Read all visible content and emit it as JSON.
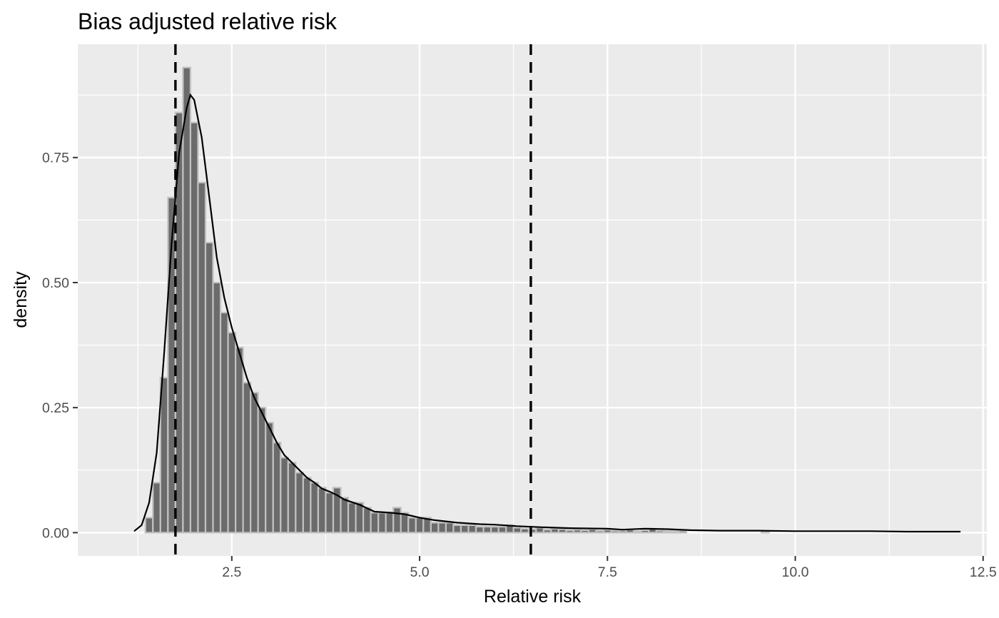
{
  "chart_data": {
    "type": "histogram",
    "title": "Bias adjusted relative risk",
    "xlabel": "Relative risk",
    "ylabel": "density",
    "xlim": [
      0.45,
      12.55
    ],
    "ylim": [
      -0.0465,
      0.9765
    ],
    "x_ticks": [
      2.5,
      5.0,
      7.5,
      10.0,
      12.5
    ],
    "x_tick_labels": [
      "2.5",
      "5.0",
      "7.5",
      "10.0",
      "12.5"
    ],
    "y_ticks": [
      0.0,
      0.25,
      0.5,
      0.75
    ],
    "y_tick_labels": [
      "0.00",
      "0.25",
      "0.50",
      "0.75"
    ],
    "grid": true,
    "background": "#ebebeb",
    "bar_fill": "#6b6b6b",
    "bar_edge": "#c2c2c2",
    "bin_width": 0.1,
    "bins": [
      {
        "x": 1.4,
        "y": 0.03
      },
      {
        "x": 1.5,
        "y": 0.1
      },
      {
        "x": 1.6,
        "y": 0.31
      },
      {
        "x": 1.7,
        "y": 0.67
      },
      {
        "x": 1.8,
        "y": 0.84
      },
      {
        "x": 1.9,
        "y": 0.93
      },
      {
        "x": 2.0,
        "y": 0.82
      },
      {
        "x": 2.1,
        "y": 0.7
      },
      {
        "x": 2.2,
        "y": 0.58
      },
      {
        "x": 2.3,
        "y": 0.5
      },
      {
        "x": 2.4,
        "y": 0.44
      },
      {
        "x": 2.5,
        "y": 0.4
      },
      {
        "x": 2.6,
        "y": 0.37
      },
      {
        "x": 2.7,
        "y": 0.3
      },
      {
        "x": 2.8,
        "y": 0.28
      },
      {
        "x": 2.9,
        "y": 0.25
      },
      {
        "x": 3.0,
        "y": 0.22
      },
      {
        "x": 3.1,
        "y": 0.18
      },
      {
        "x": 3.2,
        "y": 0.15
      },
      {
        "x": 3.3,
        "y": 0.14
      },
      {
        "x": 3.4,
        "y": 0.12
      },
      {
        "x": 3.5,
        "y": 0.11
      },
      {
        "x": 3.6,
        "y": 0.1
      },
      {
        "x": 3.7,
        "y": 0.09
      },
      {
        "x": 3.8,
        "y": 0.08
      },
      {
        "x": 3.9,
        "y": 0.09
      },
      {
        "x": 4.0,
        "y": 0.07
      },
      {
        "x": 4.1,
        "y": 0.06
      },
      {
        "x": 4.2,
        "y": 0.06
      },
      {
        "x": 4.3,
        "y": 0.05
      },
      {
        "x": 4.4,
        "y": 0.04
      },
      {
        "x": 4.5,
        "y": 0.04
      },
      {
        "x": 4.6,
        "y": 0.04
      },
      {
        "x": 4.7,
        "y": 0.05
      },
      {
        "x": 4.8,
        "y": 0.04
      },
      {
        "x": 4.9,
        "y": 0.03
      },
      {
        "x": 5.0,
        "y": 0.03
      },
      {
        "x": 5.1,
        "y": 0.03
      },
      {
        "x": 5.2,
        "y": 0.02
      },
      {
        "x": 5.3,
        "y": 0.02
      },
      {
        "x": 5.4,
        "y": 0.02
      },
      {
        "x": 5.5,
        "y": 0.015
      },
      {
        "x": 5.6,
        "y": 0.015
      },
      {
        "x": 5.7,
        "y": 0.015
      },
      {
        "x": 5.8,
        "y": 0.012
      },
      {
        "x": 5.9,
        "y": 0.012
      },
      {
        "x": 6.0,
        "y": 0.012
      },
      {
        "x": 6.1,
        "y": 0.012
      },
      {
        "x": 6.2,
        "y": 0.015
      },
      {
        "x": 6.3,
        "y": 0.01
      },
      {
        "x": 6.4,
        "y": 0.008
      },
      {
        "x": 6.5,
        "y": 0.007
      },
      {
        "x": 6.6,
        "y": 0.01
      },
      {
        "x": 6.7,
        "y": 0.006
      },
      {
        "x": 6.8,
        "y": 0.008
      },
      {
        "x": 6.9,
        "y": 0.007
      },
      {
        "x": 7.0,
        "y": 0.005
      },
      {
        "x": 7.1,
        "y": 0.006
      },
      {
        "x": 7.2,
        "y": 0.005
      },
      {
        "x": 7.3,
        "y": 0.007
      },
      {
        "x": 7.4,
        "y": 0.004
      },
      {
        "x": 7.5,
        "y": 0.006
      },
      {
        "x": 7.6,
        "y": 0.004
      },
      {
        "x": 7.7,
        "y": 0.004
      },
      {
        "x": 7.8,
        "y": 0.006
      },
      {
        "x": 7.9,
        "y": 0.003
      },
      {
        "x": 8.0,
        "y": 0.005
      },
      {
        "x": 8.1,
        "y": 0.008
      },
      {
        "x": 8.2,
        "y": 0.004
      },
      {
        "x": 8.3,
        "y": 0.003
      },
      {
        "x": 8.4,
        "y": 0.003
      },
      {
        "x": 8.5,
        "y": 0.004
      },
      {
        "x": 9.6,
        "y": 0.003
      }
    ],
    "density_curve": [
      [
        1.2,
        0.003
      ],
      [
        1.3,
        0.015
      ],
      [
        1.4,
        0.06
      ],
      [
        1.5,
        0.16
      ],
      [
        1.6,
        0.36
      ],
      [
        1.7,
        0.58
      ],
      [
        1.8,
        0.76
      ],
      [
        1.9,
        0.85
      ],
      [
        1.95,
        0.875
      ],
      [
        2.0,
        0.865
      ],
      [
        2.1,
        0.79
      ],
      [
        2.2,
        0.67
      ],
      [
        2.3,
        0.55
      ],
      [
        2.4,
        0.47
      ],
      [
        2.5,
        0.41
      ],
      [
        2.6,
        0.36
      ],
      [
        2.7,
        0.31
      ],
      [
        2.8,
        0.27
      ],
      [
        2.9,
        0.24
      ],
      [
        3.0,
        0.21
      ],
      [
        3.1,
        0.18
      ],
      [
        3.2,
        0.155
      ],
      [
        3.3,
        0.14
      ],
      [
        3.4,
        0.125
      ],
      [
        3.5,
        0.11
      ],
      [
        3.6,
        0.1
      ],
      [
        3.7,
        0.088
      ],
      [
        3.8,
        0.082
      ],
      [
        3.9,
        0.075
      ],
      [
        4.0,
        0.066
      ],
      [
        4.2,
        0.056
      ],
      [
        4.4,
        0.042
      ],
      [
        4.6,
        0.04
      ],
      [
        4.8,
        0.037
      ],
      [
        5.0,
        0.03
      ],
      [
        5.2,
        0.025
      ],
      [
        5.5,
        0.02
      ],
      [
        5.8,
        0.017
      ],
      [
        6.0,
        0.016
      ],
      [
        6.3,
        0.013
      ],
      [
        6.6,
        0.011
      ],
      [
        7.0,
        0.009
      ],
      [
        7.5,
        0.008
      ],
      [
        7.7,
        0.006
      ],
      [
        8.0,
        0.008
      ],
      [
        8.3,
        0.007
      ],
      [
        8.6,
        0.005
      ],
      [
        9.0,
        0.004
      ],
      [
        9.5,
        0.004
      ],
      [
        10.0,
        0.003
      ],
      [
        10.5,
        0.003
      ],
      [
        11.0,
        0.003
      ],
      [
        11.5,
        0.002
      ],
      [
        12.2,
        0.002
      ]
    ],
    "reference_lines": [
      1.75,
      6.48
    ]
  }
}
